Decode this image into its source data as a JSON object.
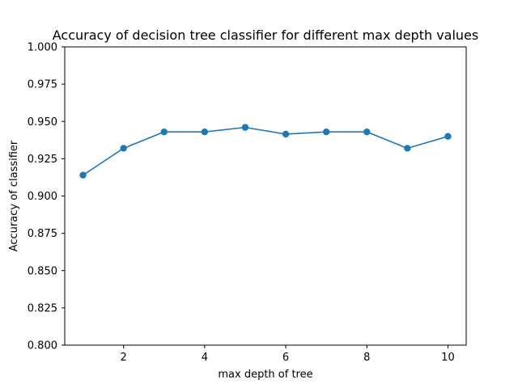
{
  "chart_data": {
    "type": "line",
    "title": "Accuracy of decision tree classifier for different max depth values",
    "xlabel": "max depth of tree",
    "ylabel": "Accuracy of classifier",
    "x": [
      1,
      2,
      3,
      4,
      5,
      6,
      7,
      8,
      9,
      10
    ],
    "series": [
      {
        "values": [
          0.914,
          0.932,
          0.943,
          0.943,
          0.946,
          0.9415,
          0.943,
          0.943,
          0.932,
          0.94
        ],
        "color": "#1f77b4",
        "marker": "circle"
      }
    ],
    "xlim": [
      0.55,
      10.45
    ],
    "ylim": [
      0.8,
      1.0
    ],
    "xticks": [
      2,
      4,
      6,
      8,
      10
    ],
    "xtick_labels": [
      "2",
      "4",
      "6",
      "8",
      "10"
    ],
    "yticks": [
      0.8,
      0.825,
      0.85,
      0.875,
      0.9,
      0.925,
      0.95,
      0.975,
      1.0
    ],
    "ytick_labels": [
      "0.800",
      "0.825",
      "0.850",
      "0.875",
      "0.900",
      "0.925",
      "0.950",
      "0.975",
      "1.000"
    ],
    "grid": false,
    "legend": false
  }
}
